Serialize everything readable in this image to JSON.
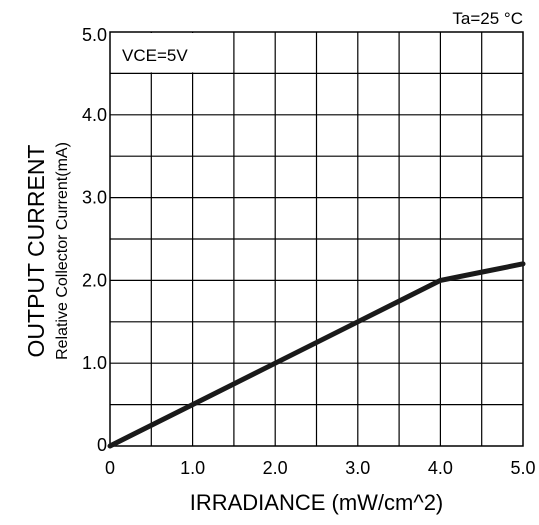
{
  "chart_data": {
    "type": "line",
    "title": "",
    "xlabel": "IRRADIANCE (mW/cm^2)",
    "ylabel": "OUTPUT CURRENT",
    "ylabel_sub": "Relative Collector Current(mA)",
    "annotation": "VCE=5V",
    "condition": "Ta=25 °C",
    "xlim": [
      0,
      5
    ],
    "ylim": [
      0,
      5
    ],
    "x_ticks": [
      "0",
      "1.0",
      "2.0",
      "3.0",
      "4.0",
      "5.0"
    ],
    "y_ticks": [
      "0",
      "1.0",
      "2.0",
      "3.0",
      "4.0",
      "5.0"
    ],
    "x_grid_step": 0.5,
    "y_grid_step": 0.5,
    "grid": true,
    "series": [
      {
        "x": [
          0,
          1.0,
          2.0,
          3.0,
          4.0,
          4.5,
          5.0
        ],
        "y": [
          0,
          0.5,
          1.0,
          1.5,
          2.0,
          2.1,
          2.2
        ]
      }
    ],
    "colors": {
      "line": "#1a1a1a",
      "grid": "#000000",
      "axis": "#000000"
    }
  }
}
